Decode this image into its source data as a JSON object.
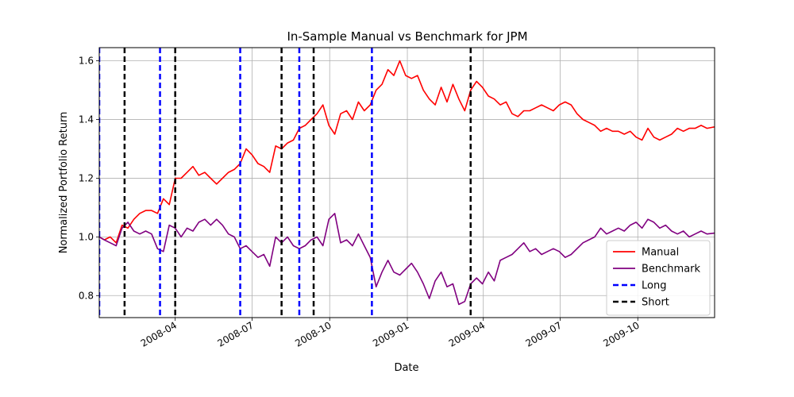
{
  "chart_data": {
    "type": "line",
    "title": "In-Sample Manual vs Benchmark for JPM",
    "xlabel": "Date",
    "ylabel": "Normalized Portfolio Return",
    "xlim": [
      "2008-01-02",
      "2009-12-31"
    ],
    "ylim": [
      0.725,
      1.645
    ],
    "grid": true,
    "legend_location": "lower right",
    "y_ticks": [
      {
        "value": 0.8,
        "label": "0.8"
      },
      {
        "value": 1.0,
        "label": "1.0"
      },
      {
        "value": 1.2,
        "label": "1.2"
      },
      {
        "value": 1.4,
        "label": "1.4"
      },
      {
        "value": 1.6,
        "label": "1.6"
      }
    ],
    "x_ticks": [
      {
        "value": "2008-04-01",
        "label": "2008-04"
      },
      {
        "value": "2008-07-01",
        "label": "2008-07"
      },
      {
        "value": "2008-10-01",
        "label": "2008-10"
      },
      {
        "value": "2009-01-01",
        "label": "2009-01"
      },
      {
        "value": "2009-04-01",
        "label": "2009-04"
      },
      {
        "value": "2009-07-01",
        "label": "2009-07"
      },
      {
        "value": "2009-10-01",
        "label": "2009-10"
      }
    ],
    "series": [
      {
        "name": "Manual",
        "color": "#ff0000",
        "points": [
          [
            "2008-01-02",
            1.0
          ],
          [
            "2008-01-08",
            0.99
          ],
          [
            "2008-01-15",
            1.0
          ],
          [
            "2008-01-22",
            0.98
          ],
          [
            "2008-01-29",
            1.04
          ],
          [
            "2008-02-05",
            1.03
          ],
          [
            "2008-02-12",
            1.06
          ],
          [
            "2008-02-19",
            1.08
          ],
          [
            "2008-02-26",
            1.09
          ],
          [
            "2008-03-04",
            1.09
          ],
          [
            "2008-03-11",
            1.08
          ],
          [
            "2008-03-18",
            1.13
          ],
          [
            "2008-03-25",
            1.11
          ],
          [
            "2008-04-01",
            1.2
          ],
          [
            "2008-04-08",
            1.2
          ],
          [
            "2008-04-15",
            1.22
          ],
          [
            "2008-04-22",
            1.24
          ],
          [
            "2008-04-29",
            1.21
          ],
          [
            "2008-05-06",
            1.22
          ],
          [
            "2008-05-13",
            1.2
          ],
          [
            "2008-05-20",
            1.18
          ],
          [
            "2008-05-27",
            1.2
          ],
          [
            "2008-06-03",
            1.22
          ],
          [
            "2008-06-10",
            1.23
          ],
          [
            "2008-06-17",
            1.25
          ],
          [
            "2008-06-24",
            1.3
          ],
          [
            "2008-07-01",
            1.28
          ],
          [
            "2008-07-08",
            1.25
          ],
          [
            "2008-07-15",
            1.24
          ],
          [
            "2008-07-22",
            1.22
          ],
          [
            "2008-07-29",
            1.31
          ],
          [
            "2008-08-05",
            1.3
          ],
          [
            "2008-08-12",
            1.32
          ],
          [
            "2008-08-19",
            1.33
          ],
          [
            "2008-08-26",
            1.37
          ],
          [
            "2008-09-02",
            1.38
          ],
          [
            "2008-09-09",
            1.4
          ],
          [
            "2008-09-16",
            1.42
          ],
          [
            "2008-09-23",
            1.45
          ],
          [
            "2008-09-30",
            1.38
          ],
          [
            "2008-10-07",
            1.35
          ],
          [
            "2008-10-14",
            1.42
          ],
          [
            "2008-10-21",
            1.43
          ],
          [
            "2008-10-28",
            1.4
          ],
          [
            "2008-11-04",
            1.46
          ],
          [
            "2008-11-11",
            1.43
          ],
          [
            "2008-11-18",
            1.45
          ],
          [
            "2008-11-25",
            1.5
          ],
          [
            "2008-12-02",
            1.52
          ],
          [
            "2008-12-09",
            1.57
          ],
          [
            "2008-12-16",
            1.55
          ],
          [
            "2008-12-23",
            1.6
          ],
          [
            "2008-12-30",
            1.55
          ],
          [
            "2009-01-06",
            1.54
          ],
          [
            "2009-01-13",
            1.55
          ],
          [
            "2009-01-20",
            1.5
          ],
          [
            "2009-01-27",
            1.47
          ],
          [
            "2009-02-03",
            1.45
          ],
          [
            "2009-02-10",
            1.51
          ],
          [
            "2009-02-17",
            1.46
          ],
          [
            "2009-02-24",
            1.52
          ],
          [
            "2009-03-03",
            1.47
          ],
          [
            "2009-03-10",
            1.43
          ],
          [
            "2009-03-17",
            1.5
          ],
          [
            "2009-03-24",
            1.53
          ],
          [
            "2009-03-31",
            1.51
          ],
          [
            "2009-04-07",
            1.48
          ],
          [
            "2009-04-14",
            1.47
          ],
          [
            "2009-04-21",
            1.45
          ],
          [
            "2009-04-28",
            1.46
          ],
          [
            "2009-05-05",
            1.42
          ],
          [
            "2009-05-12",
            1.41
          ],
          [
            "2009-05-19",
            1.43
          ],
          [
            "2009-05-26",
            1.43
          ],
          [
            "2009-06-02",
            1.44
          ],
          [
            "2009-06-09",
            1.45
          ],
          [
            "2009-06-16",
            1.44
          ],
          [
            "2009-06-23",
            1.43
          ],
          [
            "2009-06-30",
            1.45
          ],
          [
            "2009-07-07",
            1.46
          ],
          [
            "2009-07-14",
            1.45
          ],
          [
            "2009-07-21",
            1.42
          ],
          [
            "2009-07-28",
            1.4
          ],
          [
            "2009-08-04",
            1.39
          ],
          [
            "2009-08-11",
            1.38
          ],
          [
            "2009-08-18",
            1.36
          ],
          [
            "2009-08-25",
            1.37
          ],
          [
            "2009-09-01",
            1.36
          ],
          [
            "2009-09-08",
            1.36
          ],
          [
            "2009-09-15",
            1.35
          ],
          [
            "2009-09-22",
            1.36
          ],
          [
            "2009-09-29",
            1.34
          ],
          [
            "2009-10-06",
            1.33
          ],
          [
            "2009-10-13",
            1.37
          ],
          [
            "2009-10-20",
            1.34
          ],
          [
            "2009-10-27",
            1.33
          ],
          [
            "2009-11-03",
            1.34
          ],
          [
            "2009-11-10",
            1.35
          ],
          [
            "2009-11-17",
            1.37
          ],
          [
            "2009-11-24",
            1.36
          ],
          [
            "2009-12-01",
            1.37
          ],
          [
            "2009-12-08",
            1.37
          ],
          [
            "2009-12-15",
            1.38
          ],
          [
            "2009-12-22",
            1.37
          ],
          [
            "2009-12-31",
            1.375
          ]
        ]
      },
      {
        "name": "Benchmark",
        "color": "#800080",
        "points": [
          [
            "2008-01-02",
            1.0
          ],
          [
            "2008-01-08",
            0.99
          ],
          [
            "2008-01-15",
            0.98
          ],
          [
            "2008-01-22",
            0.97
          ],
          [
            "2008-01-29",
            1.03
          ],
          [
            "2008-02-05",
            1.05
          ],
          [
            "2008-02-12",
            1.02
          ],
          [
            "2008-02-19",
            1.01
          ],
          [
            "2008-02-26",
            1.02
          ],
          [
            "2008-03-04",
            1.01
          ],
          [
            "2008-03-11",
            0.96
          ],
          [
            "2008-03-18",
            0.95
          ],
          [
            "2008-03-25",
            1.04
          ],
          [
            "2008-04-01",
            1.03
          ],
          [
            "2008-04-08",
            1.0
          ],
          [
            "2008-04-15",
            1.03
          ],
          [
            "2008-04-22",
            1.02
          ],
          [
            "2008-04-29",
            1.05
          ],
          [
            "2008-05-06",
            1.06
          ],
          [
            "2008-05-13",
            1.04
          ],
          [
            "2008-05-20",
            1.06
          ],
          [
            "2008-05-27",
            1.04
          ],
          [
            "2008-06-03",
            1.01
          ],
          [
            "2008-06-10",
            1.0
          ],
          [
            "2008-06-17",
            0.96
          ],
          [
            "2008-06-24",
            0.97
          ],
          [
            "2008-07-01",
            0.95
          ],
          [
            "2008-07-08",
            0.93
          ],
          [
            "2008-07-15",
            0.94
          ],
          [
            "2008-07-22",
            0.9
          ],
          [
            "2008-07-29",
            1.0
          ],
          [
            "2008-08-05",
            0.98
          ],
          [
            "2008-08-12",
            1.0
          ],
          [
            "2008-08-19",
            0.97
          ],
          [
            "2008-08-26",
            0.96
          ],
          [
            "2008-09-02",
            0.97
          ],
          [
            "2008-09-09",
            0.99
          ],
          [
            "2008-09-16",
            1.0
          ],
          [
            "2008-09-23",
            0.97
          ],
          [
            "2008-09-30",
            1.06
          ],
          [
            "2008-10-07",
            1.08
          ],
          [
            "2008-10-14",
            0.98
          ],
          [
            "2008-10-21",
            0.99
          ],
          [
            "2008-10-28",
            0.97
          ],
          [
            "2008-11-04",
            1.01
          ],
          [
            "2008-11-11",
            0.97
          ],
          [
            "2008-11-18",
            0.93
          ],
          [
            "2008-11-25",
            0.83
          ],
          [
            "2008-12-02",
            0.88
          ],
          [
            "2008-12-09",
            0.92
          ],
          [
            "2008-12-16",
            0.88
          ],
          [
            "2008-12-23",
            0.87
          ],
          [
            "2008-12-30",
            0.89
          ],
          [
            "2009-01-06",
            0.91
          ],
          [
            "2009-01-13",
            0.88
          ],
          [
            "2009-01-20",
            0.84
          ],
          [
            "2009-01-27",
            0.79
          ],
          [
            "2009-02-03",
            0.85
          ],
          [
            "2009-02-10",
            0.88
          ],
          [
            "2009-02-17",
            0.83
          ],
          [
            "2009-02-24",
            0.84
          ],
          [
            "2009-03-03",
            0.77
          ],
          [
            "2009-03-10",
            0.78
          ],
          [
            "2009-03-17",
            0.84
          ],
          [
            "2009-03-24",
            0.86
          ],
          [
            "2009-03-31",
            0.84
          ],
          [
            "2009-04-07",
            0.88
          ],
          [
            "2009-04-14",
            0.85
          ],
          [
            "2009-04-21",
            0.92
          ],
          [
            "2009-04-28",
            0.93
          ],
          [
            "2009-05-05",
            0.94
          ],
          [
            "2009-05-12",
            0.96
          ],
          [
            "2009-05-19",
            0.98
          ],
          [
            "2009-05-26",
            0.95
          ],
          [
            "2009-06-02",
            0.96
          ],
          [
            "2009-06-09",
            0.94
          ],
          [
            "2009-06-16",
            0.95
          ],
          [
            "2009-06-23",
            0.96
          ],
          [
            "2009-06-30",
            0.95
          ],
          [
            "2009-07-07",
            0.93
          ],
          [
            "2009-07-14",
            0.94
          ],
          [
            "2009-07-21",
            0.96
          ],
          [
            "2009-07-28",
            0.98
          ],
          [
            "2009-08-04",
            0.99
          ],
          [
            "2009-08-11",
            1.0
          ],
          [
            "2009-08-18",
            1.03
          ],
          [
            "2009-08-25",
            1.01
          ],
          [
            "2009-09-01",
            1.02
          ],
          [
            "2009-09-08",
            1.03
          ],
          [
            "2009-09-15",
            1.02
          ],
          [
            "2009-09-22",
            1.04
          ],
          [
            "2009-09-29",
            1.05
          ],
          [
            "2009-10-06",
            1.03
          ],
          [
            "2009-10-13",
            1.06
          ],
          [
            "2009-10-20",
            1.05
          ],
          [
            "2009-10-27",
            1.03
          ],
          [
            "2009-11-03",
            1.04
          ],
          [
            "2009-11-10",
            1.02
          ],
          [
            "2009-11-17",
            1.01
          ],
          [
            "2009-11-24",
            1.02
          ],
          [
            "2009-12-01",
            1.0
          ],
          [
            "2009-12-08",
            1.01
          ],
          [
            "2009-12-15",
            1.02
          ],
          [
            "2009-12-22",
            1.01
          ],
          [
            "2009-12-31",
            1.013
          ]
        ]
      }
    ],
    "vertical_lines": [
      {
        "name": "Long",
        "color": "#0000ff",
        "dates": [
          "2008-01-02",
          "2008-03-14",
          "2008-06-17",
          "2008-08-26",
          "2008-11-20"
        ]
      },
      {
        "name": "Short",
        "color": "#000000",
        "dates": [
          "2008-02-01",
          "2008-04-01",
          "2008-08-05",
          "2008-09-12",
          "2009-03-17"
        ]
      }
    ]
  }
}
